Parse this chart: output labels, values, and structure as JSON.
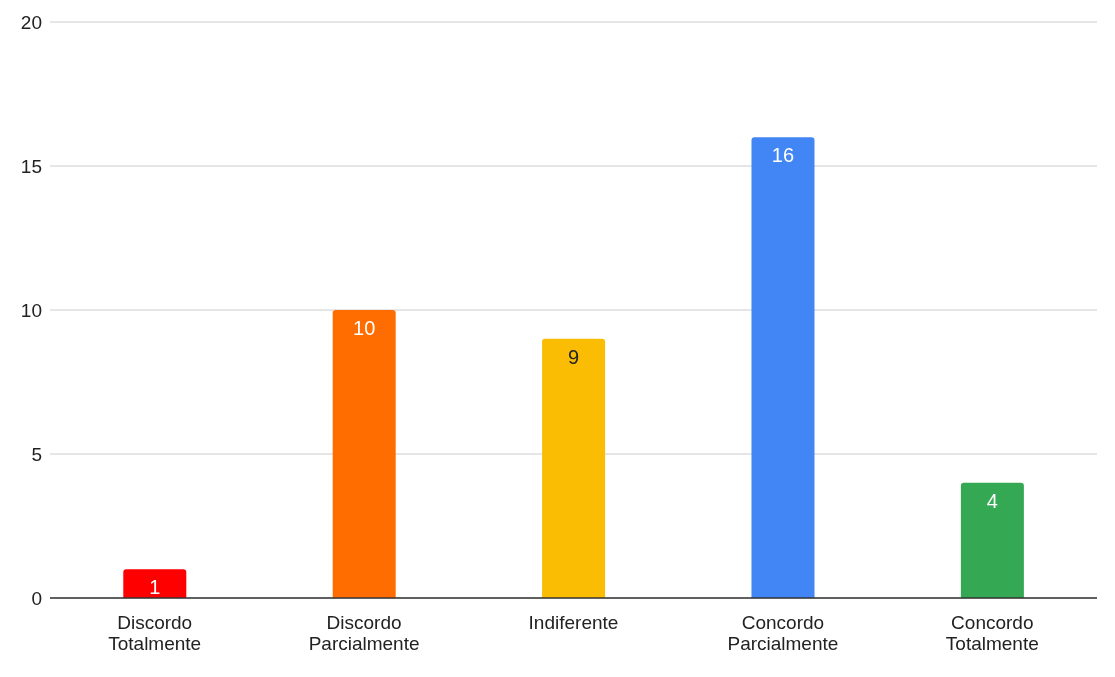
{
  "chart_data": {
    "type": "bar",
    "categories": [
      "Discordo Totalmente",
      "Discordo Parcialmente",
      "Indiferente",
      "Concordo Parcialmente",
      "Concordo Totalmente"
    ],
    "values": [
      1,
      10,
      9,
      16,
      4
    ],
    "colors": [
      "#ff0000",
      "#ff6d01",
      "#fbbc04",
      "#4285f4",
      "#34a853"
    ],
    "ylim": [
      0,
      20
    ],
    "yticks": [
      0,
      5,
      10,
      15,
      20
    ],
    "grid": "y",
    "data_labels": true
  }
}
